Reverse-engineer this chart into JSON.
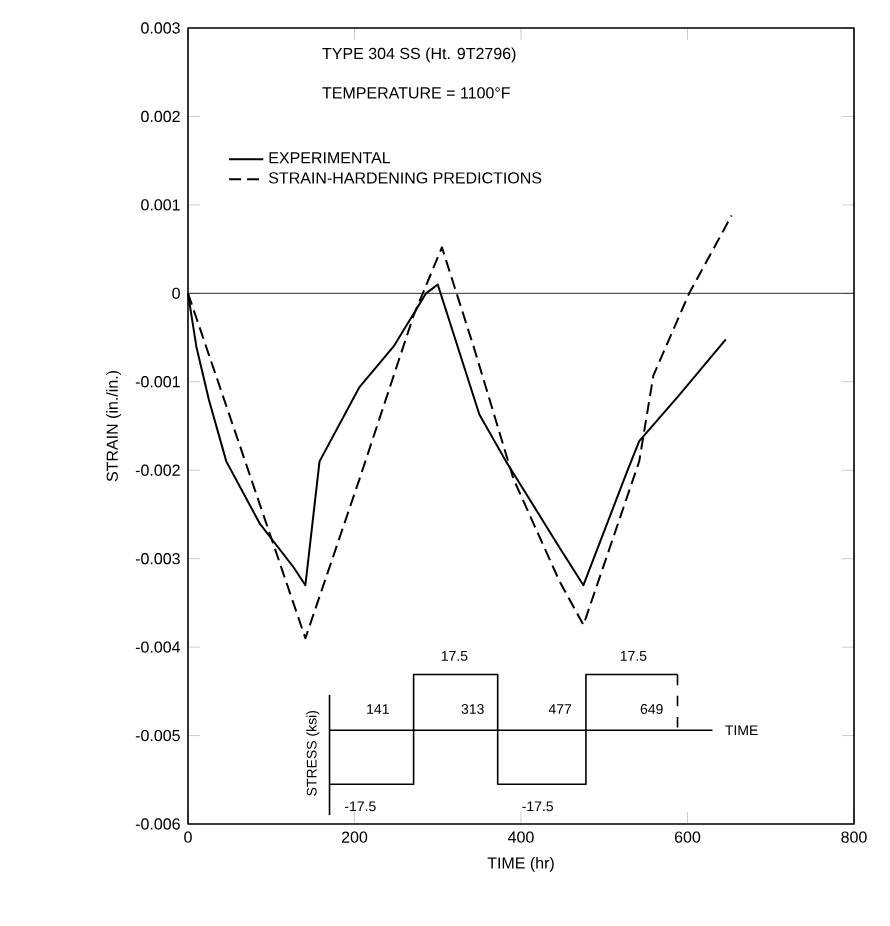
{
  "chart_data": {
    "type": "line",
    "title": "TYPE 304 SS (Ht. 9T2796)",
    "subtitle": "TEMPERATURE = 1100°F",
    "xlabel": "TIME (hr)",
    "ylabel": "STRAIN (in./in.)",
    "xlim": [
      0,
      800
    ],
    "xticks": [
      0,
      200,
      400,
      600,
      800
    ],
    "ylim": [
      -0.006,
      0.003
    ],
    "yticks": [
      -0.006,
      -0.005,
      -0.004,
      -0.003,
      -0.002,
      -0.001,
      0,
      0.001,
      0.002,
      0.003
    ],
    "series": [
      {
        "name": "EXPERIMENTAL",
        "color": "#000000",
        "line_style": "solid",
        "x": [
          0,
          10,
          25,
          46,
          86,
          127,
          141,
          158,
          206,
          247,
          286,
          300,
          350,
          382,
          446,
          475,
          526,
          542,
          590,
          646
        ],
        "values": [
          0,
          -0.0006,
          -0.0012,
          -0.0019,
          -0.0026,
          -0.0031,
          -0.0033,
          -0.0019,
          -0.00106,
          -0.0006,
          0,
          0.0001,
          -0.00137,
          -0.0019,
          -0.00287,
          -0.0033,
          -0.00205,
          -0.00167,
          -0.00115,
          -0.00052
        ]
      },
      {
        "name": "STRAIN-HARDENING PREDICTIONS",
        "color": "#000000",
        "line_style": "dashed",
        "x": [
          0,
          141,
          206,
          271,
          305,
          343,
          391,
          446,
          475,
          542,
          559,
          602,
          653
        ],
        "values": [
          0,
          -0.0039,
          -0.0021,
          -0.00025,
          0.00052,
          -0.0006,
          -0.0021,
          -0.00325,
          -0.00375,
          -0.0019,
          -0.00093,
          0,
          0.00088
        ]
      }
    ],
    "ref_lines": [
      {
        "axis": "y",
        "value": 0
      }
    ],
    "legend": "top",
    "annotations": [
      "STRESS (ksi)",
      "17.5",
      "17.5",
      "-17.5",
      "-17.5",
      "141",
      "313",
      "477",
      "649",
      "TIME"
    ]
  }
}
